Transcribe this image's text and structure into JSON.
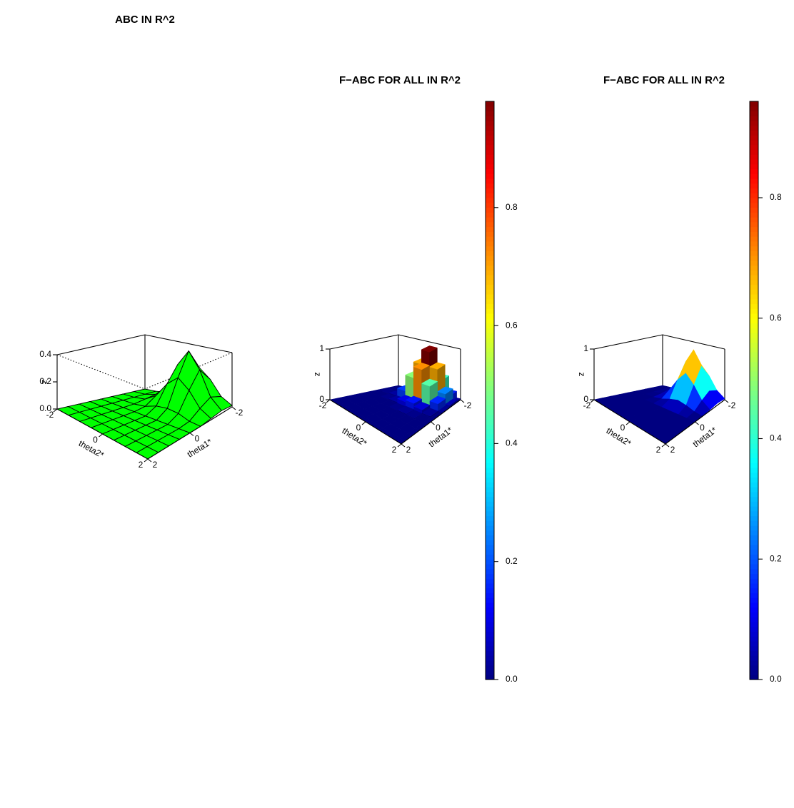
{
  "chart_data": [
    {
      "type": "surface",
      "title": "ABC IN R^2",
      "color": "#00ff00",
      "xlabel": "theta1*",
      "ylabel": "theta2*",
      "zlabel": "z",
      "x": [
        -2,
        -1.5,
        -1,
        -0.5,
        0,
        0.5,
        1,
        1.5,
        2
      ],
      "y": [
        -2,
        -1.5,
        -1,
        -0.5,
        0,
        0.5,
        1,
        1.5,
        2
      ],
      "z": [
        [
          0,
          0,
          0.01,
          0.06,
          0.17,
          0.24,
          0.17,
          0.06,
          0.01
        ],
        [
          0,
          0,
          0.02,
          0.1,
          0.28,
          0.4,
          0.28,
          0.1,
          0.02
        ],
        [
          0,
          0,
          0.01,
          0.06,
          0.17,
          0.24,
          0.17,
          0.06,
          0.01
        ],
        [
          0,
          0,
          0,
          0.01,
          0.04,
          0.05,
          0.04,
          0.01,
          0
        ],
        [
          0,
          0,
          0,
          0,
          0,
          0,
          0,
          0,
          0
        ],
        [
          0,
          0,
          0,
          0,
          0,
          0,
          0,
          0,
          0
        ],
        [
          0,
          0,
          0,
          0,
          0,
          0,
          0,
          0,
          0
        ],
        [
          0,
          0,
          0,
          0,
          0,
          0,
          0,
          0,
          0
        ],
        [
          0,
          0,
          0,
          0,
          0,
          0,
          0,
          0,
          0
        ]
      ],
      "xlim": [
        -2,
        2
      ],
      "ylim": [
        -2,
        2
      ],
      "zlim": [
        0,
        0.4
      ],
      "xticks": [
        -2,
        0,
        2
      ],
      "yticks": [
        -2,
        0,
        2
      ],
      "zticks": [
        {
          "value": 0,
          "label": "0.0"
        },
        {
          "value": 0.2,
          "label": "0.2"
        },
        {
          "value": 0.4,
          "label": "0.4"
        }
      ]
    },
    {
      "type": "bar3d",
      "title": "F−ABC FOR ALL IN R^2",
      "colormap": "jet",
      "xlabel": "theta1*",
      "ylabel": "theta2*",
      "zlabel": "z",
      "x": [
        -2,
        -1.5,
        -1,
        -0.5,
        0,
        0.5,
        1,
        1.5,
        2
      ],
      "y": [
        -2,
        -1.5,
        -1,
        -0.5,
        0,
        0.5,
        1,
        1.5,
        2
      ],
      "z": [
        [
          0,
          0,
          0.02,
          0.15,
          0.42,
          0.6,
          0.42,
          0.15,
          0.02
        ],
        [
          0,
          0,
          0.05,
          0.25,
          0.69,
          0.98,
          0.69,
          0.25,
          0.05
        ],
        [
          0,
          0.01,
          0.03,
          0.18,
          0.5,
          0.72,
          0.45,
          0.16,
          0.02
        ],
        [
          0,
          0,
          0.01,
          0.03,
          0.1,
          0.14,
          0.08,
          0.02,
          0
        ],
        [
          0,
          0,
          0,
          0,
          0.01,
          0.02,
          0.01,
          0,
          0
        ],
        [
          0,
          0,
          0,
          0,
          0,
          0,
          0,
          0,
          0
        ],
        [
          0,
          0,
          0,
          0,
          0,
          0,
          0,
          0,
          0
        ],
        [
          0,
          0,
          0,
          0,
          0,
          0,
          0,
          0,
          0
        ],
        [
          0,
          0,
          0,
          0,
          0,
          0,
          0,
          0,
          0
        ]
      ],
      "xlim": [
        -2,
        2
      ],
      "ylim": [
        -2,
        2
      ],
      "zlim": [
        0,
        1
      ],
      "xticks": [
        -2,
        0,
        2
      ],
      "yticks": [
        -2,
        0,
        2
      ],
      "zticks": [
        0,
        1
      ],
      "colorbar": {
        "lim": [
          0,
          0.98
        ],
        "ticks": [
          {
            "value": 0,
            "label": "0.0"
          },
          0.2,
          0.4,
          0.6,
          0.8
        ]
      }
    },
    {
      "type": "surface",
      "title": "F−ABC FOR ALL IN R^2",
      "colormap": "jet",
      "xlabel": "theta1*",
      "ylabel": "theta2*",
      "zlabel": "z",
      "x": [
        -2,
        -1.5,
        -1,
        -0.5,
        0,
        0.5,
        1,
        1.5,
        2
      ],
      "y": [
        -2,
        -1.5,
        -1,
        -0.5,
        0,
        0.5,
        1,
        1.5,
        2
      ],
      "z": [
        [
          0,
          0,
          0.02,
          0.15,
          0.4,
          0.58,
          0.4,
          0.15,
          0.02
        ],
        [
          0,
          0,
          0.04,
          0.24,
          0.68,
          0.96,
          0.68,
          0.24,
          0.04
        ],
        [
          0,
          0,
          0.02,
          0.15,
          0.4,
          0.58,
          0.4,
          0.15,
          0.02
        ],
        [
          0,
          0,
          0,
          0.03,
          0.09,
          0.13,
          0.09,
          0.03,
          0
        ],
        [
          0,
          0,
          0,
          0,
          0,
          0,
          0,
          0,
          0
        ],
        [
          0,
          0,
          0,
          0,
          0,
          0,
          0,
          0,
          0
        ],
        [
          0,
          0,
          0,
          0,
          0,
          0,
          0,
          0,
          0
        ],
        [
          0,
          0,
          0,
          0,
          0,
          0,
          0,
          0,
          0
        ],
        [
          0,
          0,
          0,
          0,
          0,
          0,
          0,
          0,
          0
        ]
      ],
      "xlim": [
        -2,
        2
      ],
      "ylim": [
        -2,
        2
      ],
      "zlim": [
        0,
        1
      ],
      "xticks": [
        -2,
        0,
        2
      ],
      "yticks": [
        -2,
        0,
        2
      ],
      "zticks": [
        0,
        1
      ],
      "colorbar": {
        "lim": [
          0,
          0.96
        ],
        "ticks": [
          {
            "value": 0,
            "label": "0.0"
          },
          0.2,
          0.4,
          0.6,
          0.8
        ]
      }
    }
  ]
}
